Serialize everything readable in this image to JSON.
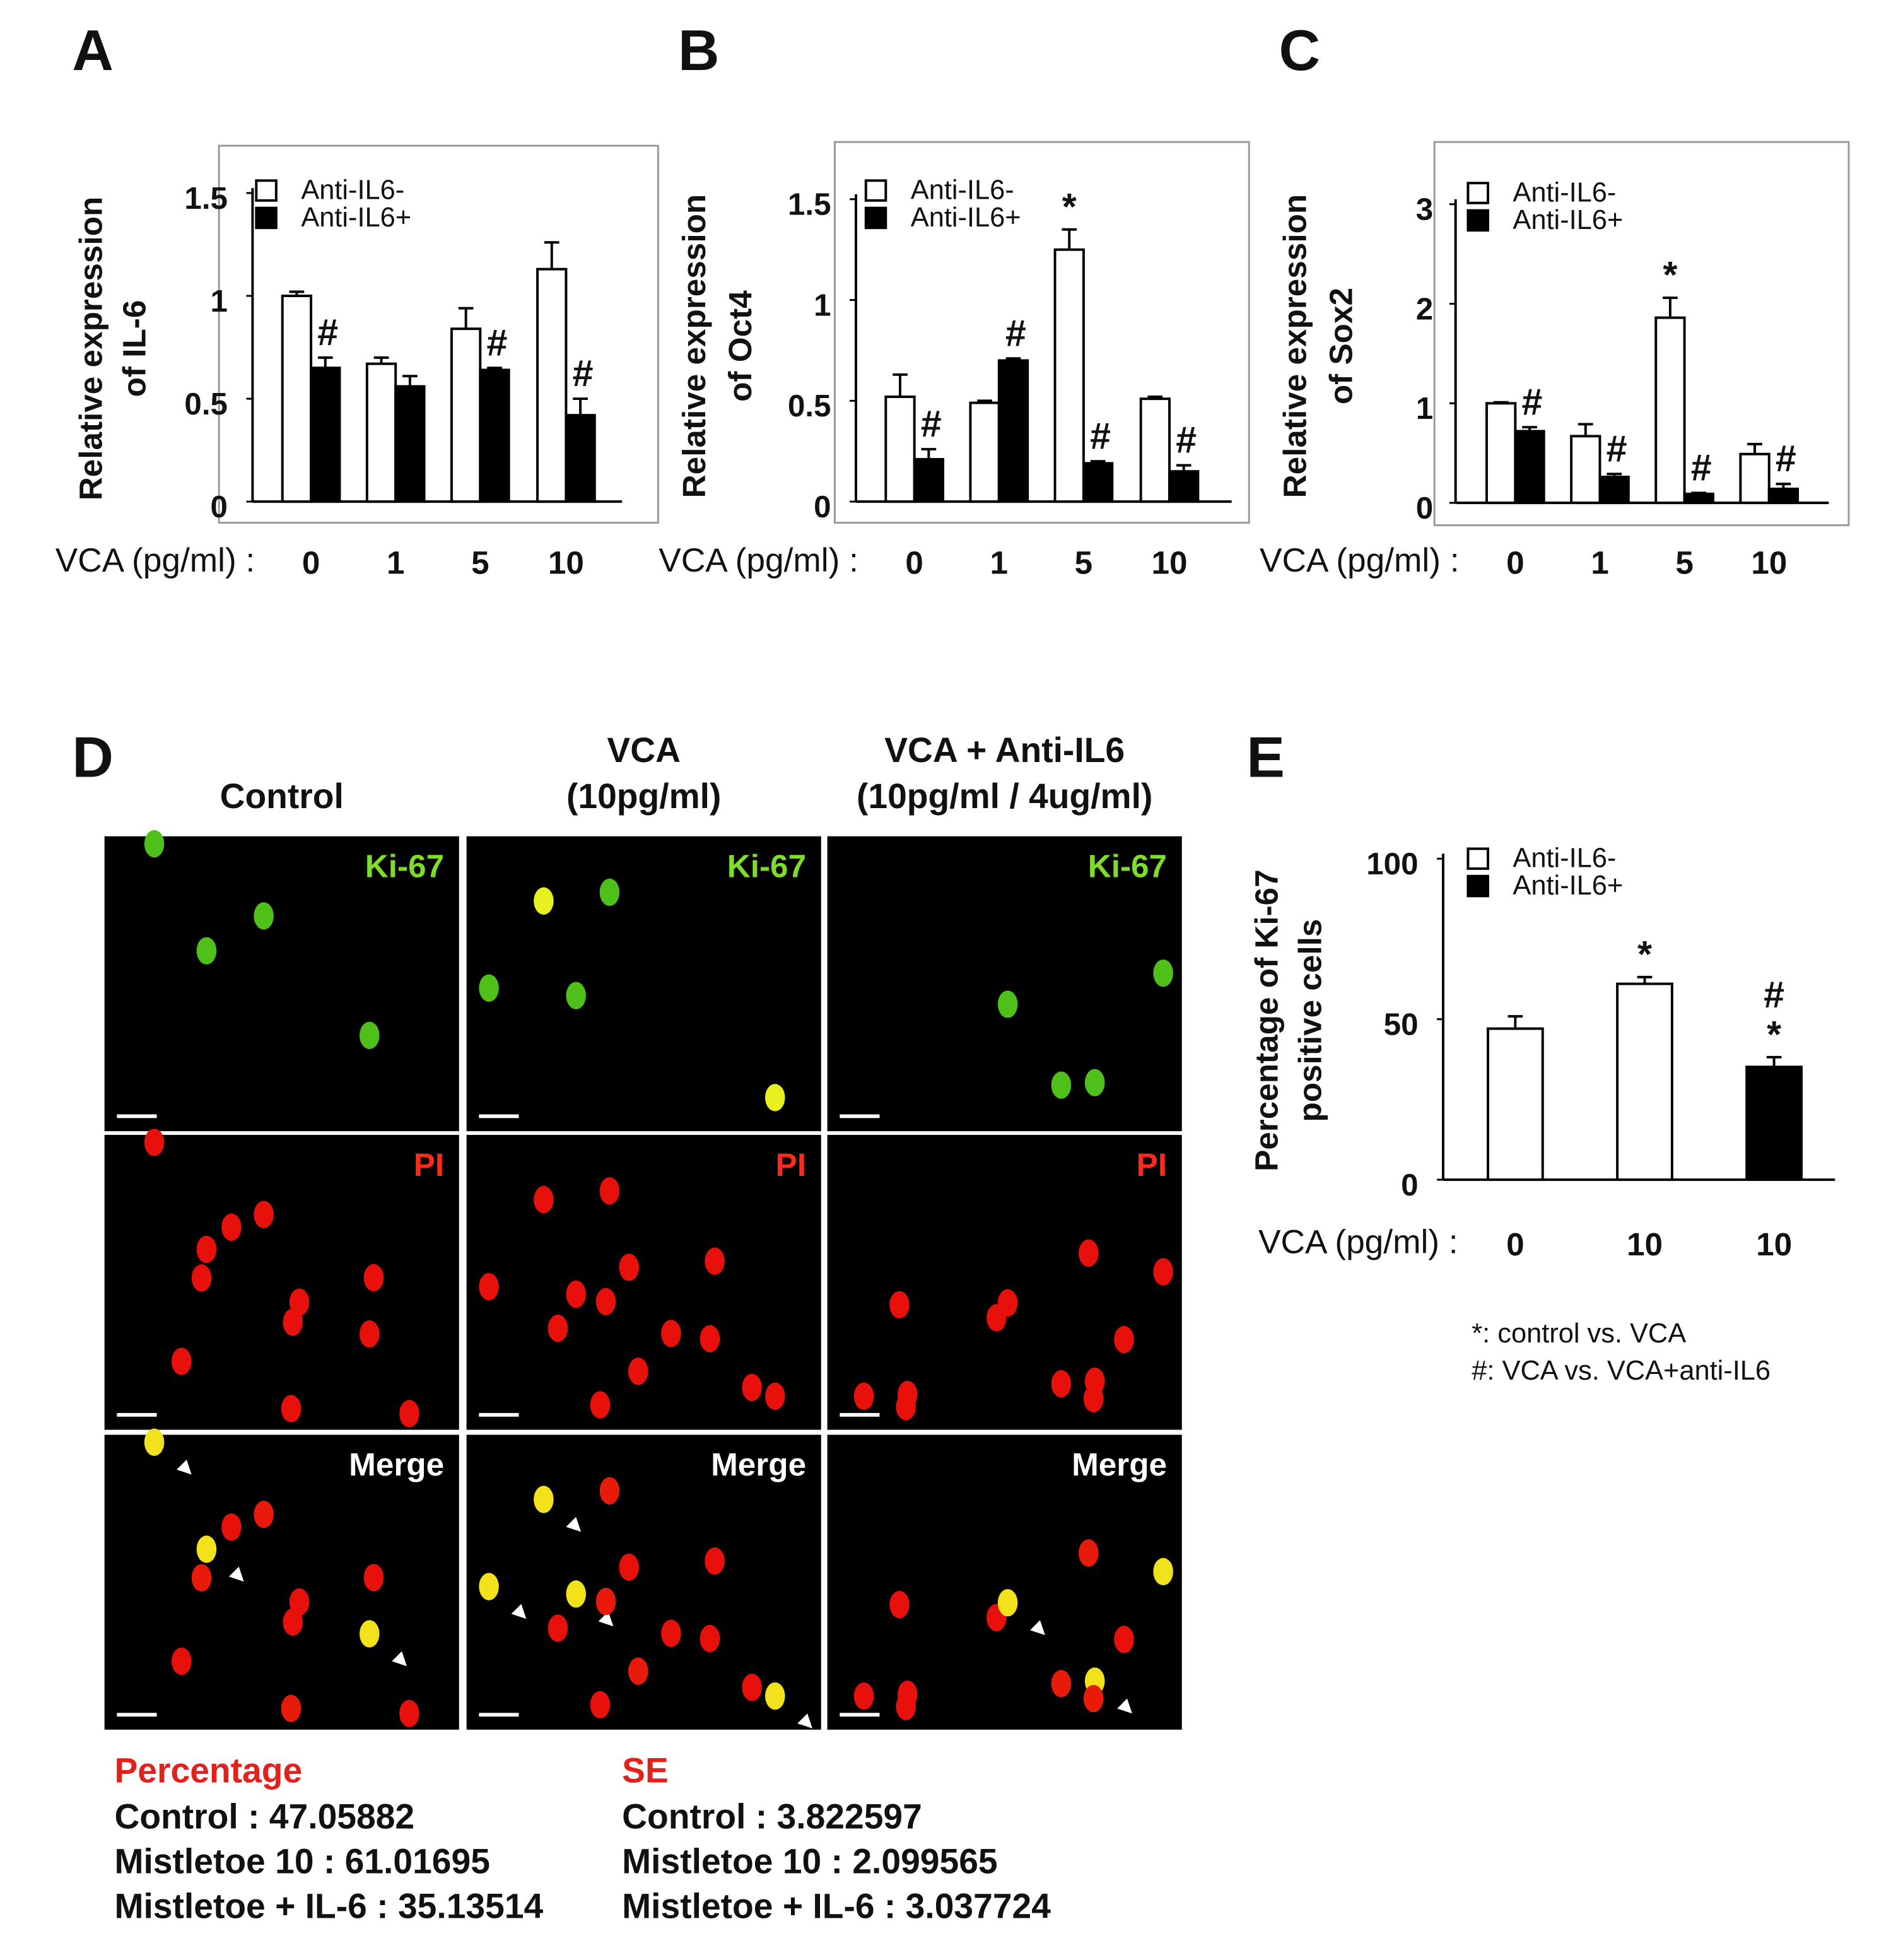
{
  "chart_data": [
    {
      "type": "bar",
      "panel": "A",
      "ylabel": [
        "Relative expression",
        "of IL-6"
      ],
      "xlabel": "VCA (pg/ml) :",
      "categories": [
        "0",
        "1",
        "5",
        "10"
      ],
      "series": [
        {
          "name": "Anti-IL6-",
          "color": "#ffffff",
          "values": [
            1.0,
            0.67,
            0.84,
            1.13
          ],
          "errors": [
            0.02,
            0.03,
            0.1,
            0.13
          ],
          "annotations": [
            null,
            null,
            null,
            null
          ]
        },
        {
          "name": "Anti-IL6+",
          "color": "#000000",
          "values": [
            0.65,
            0.56,
            0.64,
            0.42
          ],
          "errors": [
            0.05,
            0.05,
            0.01,
            0.08
          ],
          "annotations": [
            "#",
            null,
            "#",
            "#"
          ]
        }
      ],
      "ylim": [
        0,
        1.5
      ],
      "yticks": [
        0,
        0.5,
        1,
        1.5
      ]
    },
    {
      "type": "bar",
      "panel": "B",
      "ylabel": [
        "Relative expression",
        "of Oct4"
      ],
      "xlabel": "VCA (pg/ml) :",
      "categories": [
        "0",
        "1",
        "5",
        "10"
      ],
      "series": [
        {
          "name": "Anti-IL6-",
          "color": "#ffffff",
          "values": [
            0.52,
            0.49,
            1.25,
            0.51
          ],
          "errors": [
            0.11,
            0.01,
            0.1,
            0.01
          ],
          "annotations": [
            null,
            null,
            "*",
            null
          ]
        },
        {
          "name": "Anti-IL6+",
          "color": "#000000",
          "values": [
            0.21,
            0.7,
            0.19,
            0.15
          ],
          "errors": [
            0.05,
            0.01,
            0.01,
            0.03
          ],
          "annotations": [
            "#",
            "#",
            "#",
            "#"
          ]
        }
      ],
      "ylim": [
        0,
        1.5
      ],
      "yticks": [
        0,
        0.5,
        1,
        1.5
      ]
    },
    {
      "type": "bar",
      "panel": "C",
      "ylabel": [
        "Relative expression",
        "of Sox2"
      ],
      "xlabel": "VCA (pg/ml) :",
      "categories": [
        "0",
        "1",
        "5",
        "10"
      ],
      "series": [
        {
          "name": "Anti-IL6-",
          "color": "#ffffff",
          "values": [
            1.0,
            0.67,
            1.86,
            0.49
          ],
          "errors": [
            0.01,
            0.12,
            0.2,
            0.1
          ],
          "annotations": [
            null,
            null,
            "*",
            null
          ]
        },
        {
          "name": "Anti-IL6+",
          "color": "#000000",
          "values": [
            0.72,
            0.26,
            0.09,
            0.14
          ],
          "errors": [
            0.04,
            0.03,
            0.01,
            0.05
          ],
          "annotations": [
            "#",
            "#",
            "#",
            "#"
          ]
        }
      ],
      "ylim": [
        0,
        3
      ],
      "yticks": [
        0,
        1,
        2,
        3
      ]
    },
    {
      "type": "bar",
      "panel": "E",
      "ylabel": [
        "Percentage of Ki-67",
        "positive cells"
      ],
      "xlabel": "VCA (pg/ml) :",
      "categories": [
        "0",
        "10",
        "10"
      ],
      "series": [
        {
          "name": "Anti-IL6-",
          "color": "#ffffff",
          "values": [
            47.05882,
            61.01695,
            null
          ],
          "errors": [
            3.822597,
            2.099565,
            null
          ],
          "annotations": [
            null,
            "*",
            null
          ]
        },
        {
          "name": "Anti-IL6+",
          "color": "#000000",
          "values": [
            null,
            null,
            35.13514
          ],
          "errors": [
            null,
            null,
            3.037724
          ],
          "annotations": [
            null,
            null,
            [
              "#",
              "*"
            ]
          ]
        }
      ],
      "ylim": [
        0,
        100
      ],
      "yticks": [
        0,
        50,
        100
      ]
    }
  ],
  "panel_d": {
    "label": "D",
    "columns": [
      [
        "Control"
      ],
      [
        "VCA",
        "(10pg/ml)"
      ],
      [
        "VCA + Anti-IL6",
        "(10pg/ml / 4ug/ml)"
      ]
    ],
    "rows": [
      "Ki-67",
      "PI",
      "Merge"
    ],
    "percentage": {
      "title": "Percentage",
      "lines": [
        "Control : 47.05882",
        "Mistletoe 10 : 61.01695",
        "Mistletoe + IL-6 : 35.13514"
      ]
    },
    "se": {
      "title": "SE",
      "lines": [
        "Control : 3.822597",
        "Mistletoe 10 : 2.099565",
        "Mistletoe + IL-6 : 3.037724"
      ]
    }
  },
  "footnotes": [
    "*: control vs. VCA",
    "#: VCA vs. VCA+anti-IL6"
  ]
}
